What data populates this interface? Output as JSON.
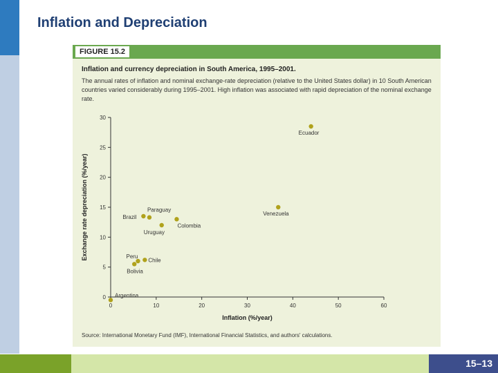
{
  "slide": {
    "title": "Inflation and Depreciation",
    "page_number": "15–13"
  },
  "figure": {
    "label": "FIGURE 15.2",
    "title": "Inflation and currency depreciation in South America, 1995–2001.",
    "caption": "The annual rates of inflation and nominal exchange-rate depreciation (relative to the United States dollar) in 10 South American countries varied considerably during 1995–2001. High inflation was associated with rapid depreciation of the nominal exchange rate.",
    "source": "Source: International Monetary Fund (IMF), International Financial Statistics, and authors' calculations."
  },
  "colors": {
    "points": "#b0a21c",
    "header_bar": "#6aa84f",
    "panel": "#eef2dc"
  },
  "chart_data": {
    "type": "scatter",
    "title": "Inflation and currency depreciation in South America, 1995–2001.",
    "xlabel": "Inflation (%/year)",
    "ylabel": "Exchange rate depreciation (%/year)",
    "xlim": [
      0,
      60
    ],
    "ylim": [
      0,
      30
    ],
    "xticks": [
      "0",
      "10",
      "20",
      "30",
      "40",
      "50",
      "60"
    ],
    "yticks": [
      "0",
      "5",
      "10",
      "15",
      "20",
      "25",
      "30"
    ],
    "grid": false,
    "points": [
      {
        "label": "Argentina",
        "x": 0,
        "y": -0.5
      },
      {
        "label": "Bolivia",
        "x": 5.2,
        "y": 5.5
      },
      {
        "label": "Peru",
        "x": 6,
        "y": 6
      },
      {
        "label": "Chile",
        "x": 7.5,
        "y": 6.2
      },
      {
        "label": "Brazil",
        "x": 7.2,
        "y": 13.5
      },
      {
        "label": "Paraguay",
        "x": 8.5,
        "y": 13.3
      },
      {
        "label": "Uruguay",
        "x": 11.2,
        "y": 12
      },
      {
        "label": "Colombia",
        "x": 14.5,
        "y": 13
      },
      {
        "label": "Venezuela",
        "x": 36.8,
        "y": 15
      },
      {
        "label": "Ecuador",
        "x": 44,
        "y": 28.5
      }
    ]
  }
}
